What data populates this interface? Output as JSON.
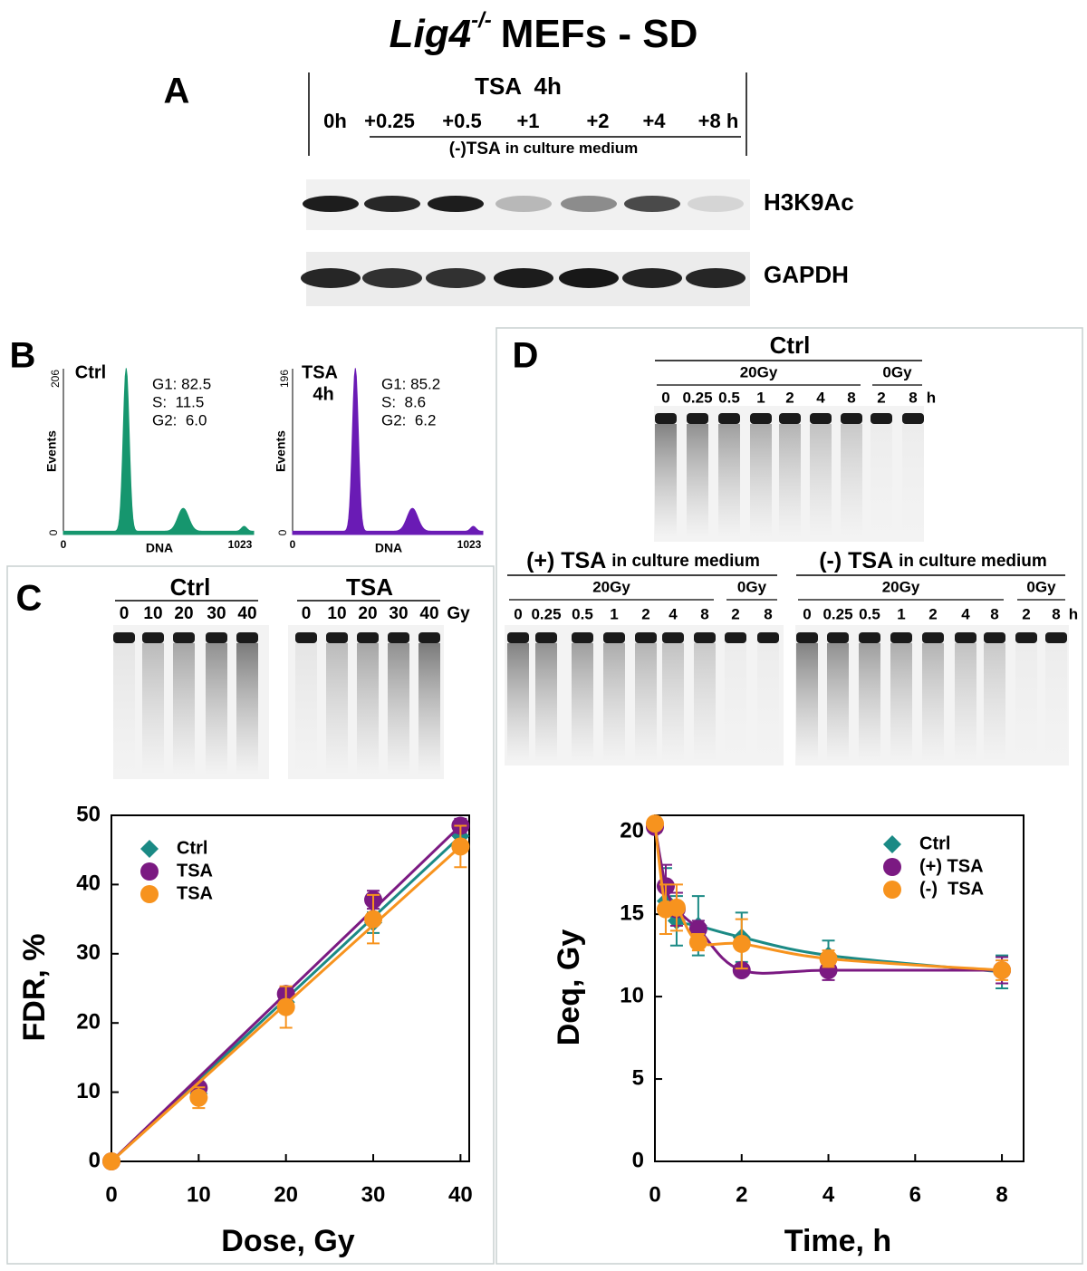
{
  "title": {
    "gene": "Lig4",
    "genotype": "-/-",
    "rest": "MEFs - SD"
  },
  "panel_a": {
    "label": "A",
    "treatment": "TSA  4h",
    "lanes": [
      "0h",
      "+0.25",
      "+0.5",
      "+1",
      "+2",
      "+4",
      "+8 h"
    ],
    "medium": "(-)TSA",
    "medium_note": "in culture medium",
    "blots": [
      "H3K9Ac",
      "GAPDH"
    ]
  },
  "panel_b": {
    "label": "B",
    "ylabel": "Events",
    "xlabel": "DNA",
    "ymin": "0",
    "xmin": "0",
    "xmax": "1023",
    "plots": [
      {
        "name": [
          "Ctrl"
        ],
        "ymax": "206",
        "stats": [
          "G1: 82.5",
          "S:  11.5",
          "G2:  6.0"
        ]
      },
      {
        "name": [
          "TSA",
          "4h"
        ],
        "ymax": "196",
        "stats": [
          "G1: 85.2",
          "S:  8.6",
          "G2:  6.2"
        ]
      }
    ]
  },
  "panel_c": {
    "label": "C",
    "gels": [
      {
        "name": "Ctrl",
        "lanes": [
          "0",
          "10",
          "20",
          "30",
          "40"
        ]
      },
      {
        "name": "TSA",
        "lanes": [
          "0",
          "10",
          "20",
          "30",
          "40"
        ],
        "unit": "Gy"
      }
    ]
  },
  "panel_d": {
    "label": "D",
    "gels": [
      {
        "name": "Ctrl",
        "groups": [
          {
            "dose": "20Gy",
            "lanes": [
              "0",
              "0.25",
              "0.5",
              "1",
              "2",
              "4",
              "8"
            ]
          },
          {
            "dose": "0Gy",
            "lanes": [
              "2",
              "8"
            ]
          }
        ],
        "unit": "h"
      },
      {
        "name": "(+) TSA",
        "note": "in culture medium",
        "groups": [
          {
            "dose": "20Gy",
            "lanes": [
              "0",
              "0.25",
              "0.5",
              "1",
              "2",
              "4",
              "8"
            ]
          },
          {
            "dose": "0Gy",
            "lanes": [
              "2",
              "8"
            ]
          }
        ]
      },
      {
        "name": "(-) TSA",
        "note": "in culture medium",
        "groups": [
          {
            "dose": "20Gy",
            "lanes": [
              "0",
              "0.25",
              "0.5",
              "1",
              "2",
              "4",
              "8"
            ]
          },
          {
            "dose": "0Gy",
            "lanes": [
              "2",
              "8"
            ]
          }
        ],
        "unit": "h"
      }
    ]
  },
  "chart_data": [
    {
      "type": "scatter",
      "fit": "linear",
      "xlabel": "Dose, Gy",
      "ylabel": "FDR, %",
      "x": [
        0,
        10,
        20,
        30,
        40
      ],
      "xlim": [
        0,
        41
      ],
      "ylim": [
        0,
        50
      ],
      "xticks": [
        0,
        10,
        20,
        30,
        40
      ],
      "yticks": [
        0,
        10,
        20,
        30,
        40,
        50
      ],
      "legend": "upper left",
      "series": [
        {
          "name": "Ctrl",
          "color": "#1b8a85",
          "marker": "diamond",
          "values": [
            0,
            9.8,
            23,
            34.5,
            47
          ],
          "errors": [
            0,
            1,
            1.5,
            1.5,
            1.5
          ]
        },
        {
          "name": "TSA",
          "color": "#7b1a82",
          "marker": "circle",
          "values": [
            0,
            10.6,
            24.2,
            37.8,
            48.5
          ],
          "errors": [
            0,
            0.8,
            1,
            1.3,
            1
          ]
        },
        {
          "name": "TSA",
          "color": "#f7931e",
          "marker": "circle",
          "values": [
            0,
            9.2,
            22.3,
            35,
            45.5
          ],
          "errors": [
            0,
            1.5,
            3,
            3.5,
            3
          ]
        }
      ]
    },
    {
      "type": "scatter",
      "fit": "curve",
      "xlabel": "Time, h",
      "ylabel": "Deq, Gy",
      "x": [
        0,
        0.25,
        0.5,
        1,
        2,
        4,
        8
      ],
      "xlim": [
        0,
        8.5
      ],
      "ylim": [
        0,
        21
      ],
      "xticks": [
        0,
        2,
        4,
        6,
        8
      ],
      "yticks": [
        0,
        5,
        10,
        15,
        20
      ],
      "legend": "upper right",
      "series": [
        {
          "name": "Ctrl",
          "color": "#1b8a85",
          "marker": "diamond",
          "values": [
            20.5,
            15.8,
            14.6,
            14.3,
            13.6,
            12.5,
            11.5
          ],
          "errors": [
            0,
            2,
            1.5,
            1.8,
            1.5,
            0.9,
            1
          ]
        },
        {
          "name": "(+) TSA",
          "color": "#7b1a82",
          "marker": "circle",
          "values": [
            20.3,
            16.7,
            15.3,
            14.1,
            11.6,
            11.6,
            11.6
          ],
          "errors": [
            0,
            1.3,
            1,
            0.5,
            0.3,
            0.6,
            0.8
          ]
        },
        {
          "name": "(-)  TSA",
          "color": "#f7931e",
          "marker": "circle",
          "values": [
            20.5,
            15.3,
            15.4,
            13.3,
            13.2,
            12.3,
            11.6
          ],
          "errors": [
            0,
            1.5,
            1.4,
            0.5,
            1.5,
            0.5,
            0.6
          ]
        }
      ]
    }
  ]
}
